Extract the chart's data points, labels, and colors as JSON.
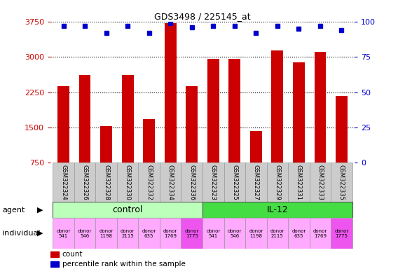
{
  "title": "GDS3498 / 225145_at",
  "samples": [
    "GSM322324",
    "GSM322326",
    "GSM322328",
    "GSM322330",
    "GSM322332",
    "GSM322334",
    "GSM322336",
    "GSM322323",
    "GSM322325",
    "GSM322327",
    "GSM322329",
    "GSM322331",
    "GSM322333",
    "GSM322335"
  ],
  "counts": [
    2380,
    2620,
    1530,
    2620,
    1680,
    3720,
    2380,
    2960,
    2960,
    1430,
    3130,
    2890,
    3100,
    2170
  ],
  "percentile_ranks": [
    97,
    97,
    92,
    97,
    92,
    99,
    96,
    97,
    97,
    92,
    97,
    95,
    97,
    94
  ],
  "bar_color": "#cc0000",
  "dot_color": "#0000cc",
  "ylim_left": [
    750,
    3750
  ],
  "ylim_right": [
    0,
    100
  ],
  "yticks_left": [
    750,
    1500,
    2250,
    3000,
    3750
  ],
  "yticks_right": [
    0,
    25,
    50,
    75,
    100
  ],
  "grid_lines": [
    1500,
    2250,
    3000
  ],
  "agent_groups": [
    {
      "label": "control",
      "start": 0,
      "end": 7,
      "color": "#bbffbb"
    },
    {
      "label": "IL-12",
      "start": 7,
      "end": 14,
      "color": "#44dd44"
    }
  ],
  "individuals": [
    {
      "donor": "donor\n541",
      "color": "#ffaaff"
    },
    {
      "donor": "donor\n546",
      "color": "#ffaaff"
    },
    {
      "donor": "donor\n1198",
      "color": "#ffaaff"
    },
    {
      "donor": "donor\n2115",
      "color": "#ffaaff"
    },
    {
      "donor": "donor\n635",
      "color": "#ffaaff"
    },
    {
      "donor": "donor\n1769",
      "color": "#ffaaff"
    },
    {
      "donor": "donor\n1775",
      "color": "#ee55ee"
    },
    {
      "donor": "donor\n541",
      "color": "#ffaaff"
    },
    {
      "donor": "donor\n546",
      "color": "#ffaaff"
    },
    {
      "donor": "donor\n1198",
      "color": "#ffaaff"
    },
    {
      "donor": "donor\n2115",
      "color": "#ffaaff"
    },
    {
      "donor": "donor\n635",
      "color": "#ffaaff"
    },
    {
      "donor": "donor\n1769",
      "color": "#ffaaff"
    },
    {
      "donor": "donor\n1775",
      "color": "#ee55ee"
    }
  ],
  "left_tick_color": "#cc0000",
  "right_tick_color": "#0000cc",
  "bar_width": 0.55,
  "sample_box_color": "#cccccc",
  "sample_box_edge": "#999999",
  "fig_bg": "#ffffff"
}
